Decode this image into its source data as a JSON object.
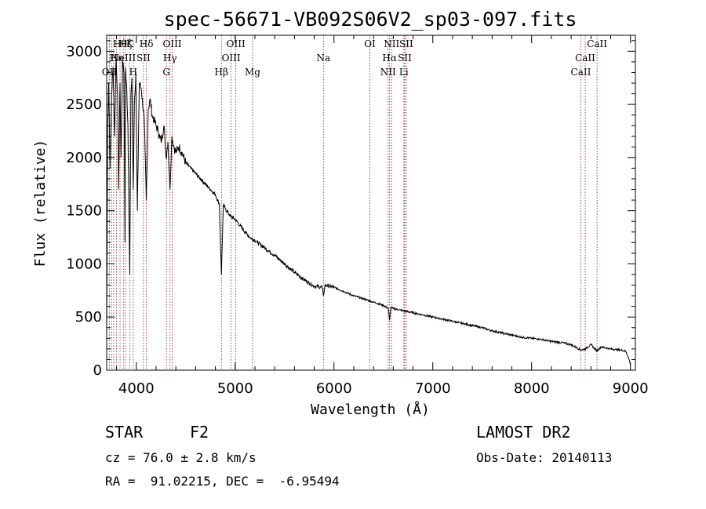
{
  "chart_data": {
    "type": "line",
    "title": "spec-56671-VB092S06V2_sp03-097.fits",
    "xlabel": "Wavelength (Å)",
    "ylabel": "Flux (relative)",
    "xlim": [
      3700,
      9050
    ],
    "ylim": [
      0,
      3150
    ],
    "xticks": [
      4000,
      5000,
      6000,
      7000,
      8000,
      9000
    ],
    "yticks": [
      0,
      500,
      1000,
      1500,
      2000,
      2500,
      3000
    ],
    "grid": false,
    "series": [
      {
        "color": "#000000",
        "x": [
          3700,
          3710,
          3720,
          3735,
          3750,
          3765,
          3780,
          3795,
          3810,
          3820,
          3835,
          3845,
          3860,
          3875,
          3885,
          3890,
          3900,
          3915,
          3933,
          3945,
          3955,
          3968,
          3980,
          3995,
          4010,
          4030,
          4050,
          4080,
          4101,
          4120,
          4140,
          4160,
          4180,
          4200,
          4220,
          4250,
          4280,
          4300,
          4320,
          4340,
          4360,
          4380,
          4400,
          4430,
          4460,
          4500,
          4550,
          4600,
          4650,
          4700,
          4750,
          4800,
          4840,
          4861,
          4880,
          4900,
          4950,
          5000,
          5050,
          5100,
          5150,
          5200,
          5300,
          5400,
          5500,
          5600,
          5700,
          5800,
          5880,
          5893,
          5910,
          6000,
          6100,
          6200,
          6300,
          6400,
          6500,
          6550,
          6563,
          6575,
          6600,
          6700,
          6800,
          6900,
          7000,
          7100,
          7200,
          7300,
          7400,
          7500,
          7600,
          7700,
          7800,
          7900,
          8000,
          8100,
          8200,
          8300,
          8400,
          8498,
          8542,
          8600,
          8662,
          8700,
          8800,
          8900,
          8950,
          8980,
          9000
        ],
        "y": [
          300,
          2300,
          2700,
          1900,
          2600,
          2850,
          2200,
          2950,
          2600,
          1700,
          2700,
          2000,
          2900,
          2800,
          1200,
          2850,
          2700,
          2300,
          900,
          2600,
          2750,
          1700,
          2500,
          2800,
          1500,
          2700,
          2650,
          2350,
          1600,
          2450,
          2550,
          2400,
          2350,
          2300,
          2250,
          2150,
          2300,
          2000,
          2150,
          1700,
          2200,
          2100,
          2050,
          2100,
          2050,
          1950,
          1900,
          1850,
          1800,
          1750,
          1700,
          1650,
          1560,
          900,
          1550,
          1520,
          1450,
          1420,
          1360,
          1300,
          1250,
          1220,
          1150,
          1080,
          1000,
          920,
          850,
          790,
          780,
          700,
          800,
          780,
          740,
          700,
          670,
          640,
          610,
          580,
          470,
          590,
          580,
          560,
          540,
          520,
          500,
          480,
          460,
          440,
          420,
          400,
          370,
          350,
          330,
          310,
          300,
          290,
          270,
          260,
          240,
          190,
          200,
          240,
          180,
          220,
          200,
          190,
          180,
          120,
          50
        ]
      }
    ],
    "lines": [
      {
        "wavelength": 3727,
        "label": "OII",
        "row": 3
      },
      {
        "wavelength": 3750,
        "label": "",
        "row": 0
      },
      {
        "wavelength": 3771,
        "label": "",
        "row": 0
      },
      {
        "wavelength": 3798,
        "label": "Hη",
        "row": 2
      },
      {
        "wavelength": 3835,
        "label": "Hθ",
        "row": 1
      },
      {
        "wavelength": 3869,
        "label": "NeIII",
        "row": 2
      },
      {
        "wavelength": 3889,
        "label": "Hζ",
        "row": 1
      },
      {
        "wavelength": 3934,
        "label": "K",
        "row": 1
      },
      {
        "wavelength": 3969,
        "label": "H",
        "row": 3
      },
      {
        "wavelength": 4072,
        "label": "SII",
        "row": 2
      },
      {
        "wavelength": 4102,
        "label": "Hδ",
        "row": 1
      },
      {
        "wavelength": 4305,
        "label": "G",
        "row": 3
      },
      {
        "wavelength": 4341,
        "label": "Hγ",
        "row": 2
      },
      {
        "wavelength": 4363,
        "label": "OIII",
        "row": 1
      },
      {
        "wavelength": 4861,
        "label": "Hβ",
        "row": 3
      },
      {
        "wavelength": 4959,
        "label": "OIII",
        "row": 2
      },
      {
        "wavelength": 5007,
        "label": "OIII",
        "row": 1
      },
      {
        "wavelength": 5176,
        "label": "Mg",
        "row": 3
      },
      {
        "wavelength": 5893,
        "label": "Na",
        "row": 2
      },
      {
        "wavelength": 6363,
        "label": "OI",
        "row": 1
      },
      {
        "wavelength": 6548,
        "label": "NII",
        "row": 3
      },
      {
        "wavelength": 6563,
        "label": "Hα",
        "row": 2
      },
      {
        "wavelength": 6583,
        "label": "NII",
        "row": 1
      },
      {
        "wavelength": 6707,
        "label": "Li",
        "row": 3
      },
      {
        "wavelength": 6716,
        "label": "SII",
        "row": 2
      },
      {
        "wavelength": 6731,
        "label": "SII",
        "row": 1
      },
      {
        "wavelength": 8498,
        "label": "CaII",
        "row": 3
      },
      {
        "wavelength": 8542,
        "label": "CaII",
        "row": 2
      },
      {
        "wavelength": 8662,
        "label": "CaII",
        "row": 1
      }
    ],
    "line_color": "#8b1a1a"
  },
  "info": {
    "object_class": "STAR",
    "subclass": "F2",
    "survey": "LAMOST DR2",
    "redshift": "cz = 76.0 ± 2.8 km/s",
    "obs_date": "Obs-Date: 20140113",
    "coords": "RA =  91.02215, DEC =  -6.95494"
  }
}
